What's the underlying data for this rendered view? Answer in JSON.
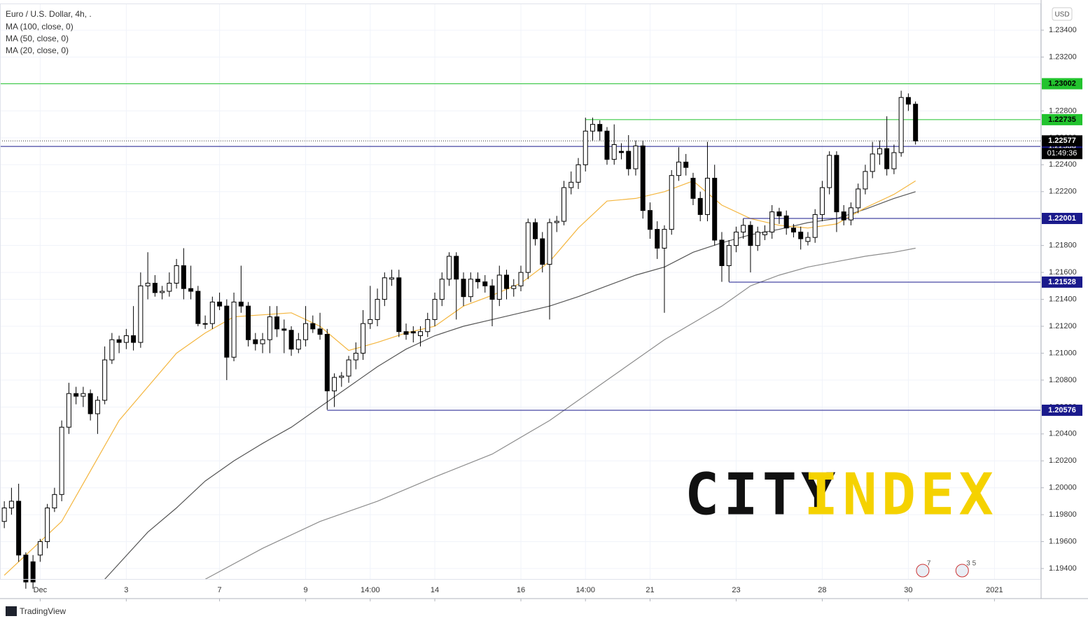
{
  "chart_data": {
    "type": "candlestick",
    "title": "Euro / U.S. Dollar, 4h, .",
    "currency": "USD",
    "xlim": [
      -0.6,
      144.5
    ],
    "ylim": [
      1.19317,
      1.23598
    ],
    "grid": true,
    "xticks": [
      {
        "value": 5,
        "label": "Dec"
      },
      {
        "value": 17,
        "label": "3"
      },
      {
        "value": 30,
        "label": "7"
      },
      {
        "value": 42,
        "label": "9"
      },
      {
        "value": 51,
        "label": "14:00"
      },
      {
        "value": 60,
        "label": "14"
      },
      {
        "value": 72,
        "label": "16"
      },
      {
        "value": 81,
        "label": "14:00"
      },
      {
        "value": 90,
        "label": "21"
      },
      {
        "value": 102,
        "label": "23"
      },
      {
        "value": 114,
        "label": "28"
      },
      {
        "value": 126,
        "label": "30"
      },
      {
        "value": 138,
        "label": "2021"
      }
    ],
    "yticks": [
      {
        "value": 1.194,
        "label": "1.19400"
      },
      {
        "value": 1.196,
        "label": "1.19600"
      },
      {
        "value": 1.198,
        "label": "1.19800"
      },
      {
        "value": 1.2,
        "label": "1.20000"
      },
      {
        "value": 1.202,
        "label": "1.20200"
      },
      {
        "value": 1.204,
        "label": "1.20400"
      },
      {
        "value": 1.206,
        "label": "1.20600"
      },
      {
        "value": 1.208,
        "label": "1.20800"
      },
      {
        "value": 1.21,
        "label": "1.21000"
      },
      {
        "value": 1.212,
        "label": "1.21200"
      },
      {
        "value": 1.214,
        "label": "1.21400"
      },
      {
        "value": 1.216,
        "label": "1.21600"
      },
      {
        "value": 1.218,
        "label": "1.21800"
      },
      {
        "value": 1.22,
        "label": "1.22000"
      },
      {
        "value": 1.222,
        "label": "1.22200"
      },
      {
        "value": 1.224,
        "label": "1.22400"
      },
      {
        "value": 1.226,
        "label": "1.22600"
      },
      {
        "value": 1.228,
        "label": "1.22800"
      },
      {
        "value": 1.23,
        "label": "1.23000"
      },
      {
        "value": 1.232,
        "label": "1.23200"
      },
      {
        "value": 1.234,
        "label": "1.23400"
      }
    ],
    "ohlc": [
      [
        1.1975,
        1.199,
        1.197,
        1.1985
      ],
      [
        1.1985,
        1.2,
        1.198,
        1.199
      ],
      [
        1.199,
        1.2003,
        1.1945,
        1.195
      ],
      [
        1.195,
        1.1952,
        1.1925,
        1.193
      ],
      [
        1.1945,
        1.195,
        1.1925,
        1.193
      ],
      [
        1.195,
        1.1962,
        1.1945,
        1.196
      ],
      [
        1.196,
        1.1988,
        1.1955,
        1.1985
      ],
      [
        1.1985,
        1.2,
        1.1982,
        1.1995
      ],
      [
        1.1995,
        1.205,
        1.199,
        1.2045
      ],
      [
        1.2045,
        1.2078,
        1.204,
        1.207
      ],
      [
        1.207,
        1.2075,
        1.2062,
        1.2068
      ],
      [
        1.2068,
        1.2075,
        1.206,
        1.207
      ],
      [
        1.207,
        1.2073,
        1.205,
        1.2055
      ],
      [
        1.2055,
        1.2068,
        1.204,
        1.2065
      ],
      [
        1.2065,
        1.2105,
        1.2062,
        1.2095
      ],
      [
        1.2095,
        1.2115,
        1.2092,
        1.211
      ],
      [
        1.211,
        1.2113,
        1.21,
        1.2108
      ],
      [
        1.2108,
        1.2118,
        1.2103,
        1.2113
      ],
      [
        1.2113,
        1.2135,
        1.2102,
        1.2108
      ],
      [
        1.2108,
        1.216,
        1.2104,
        1.215
      ],
      [
        1.215,
        1.2175,
        1.214,
        1.2152
      ],
      [
        1.2152,
        1.2158,
        1.2142,
        1.2145
      ],
      [
        1.2145,
        1.215,
        1.214,
        1.2146
      ],
      [
        1.2146,
        1.216,
        1.2142,
        1.2152
      ],
      [
        1.2152,
        1.217,
        1.2148,
        1.2165
      ],
      [
        1.2165,
        1.2178,
        1.214,
        1.2148
      ],
      [
        1.2148,
        1.2165,
        1.214,
        1.2146
      ],
      [
        1.2146,
        1.215,
        1.212,
        1.2122
      ],
      [
        1.2122,
        1.2128,
        1.2118,
        1.2122
      ],
      [
        1.2122,
        1.2142,
        1.2118,
        1.2138
      ],
      [
        1.2138,
        1.2145,
        1.2132,
        1.2135
      ],
      [
        1.2135,
        1.214,
        1.208,
        1.2097
      ],
      [
        1.2097,
        1.2145,
        1.2094,
        1.2138
      ],
      [
        1.2138,
        1.2165,
        1.213,
        1.2135
      ],
      [
        1.2135,
        1.2138,
        1.2105,
        1.211
      ],
      [
        1.211,
        1.2115,
        1.2102,
        1.2107
      ],
      [
        1.2107,
        1.2115,
        1.21,
        1.211
      ],
      [
        1.211,
        1.2135,
        1.21,
        1.2127
      ],
      [
        1.2127,
        1.2135,
        1.2112,
        1.2118
      ],
      [
        1.2118,
        1.2125,
        1.21,
        1.2117
      ],
      [
        1.2117,
        1.212,
        1.2098,
        1.2103
      ],
      [
        1.2103,
        1.2115,
        1.21,
        1.211
      ],
      [
        1.211,
        1.2135,
        1.2105,
        1.2122
      ],
      [
        1.2122,
        1.2128,
        1.2115,
        1.2118
      ],
      [
        1.2118,
        1.213,
        1.211,
        1.2114
      ],
      [
        1.2114,
        1.2118,
        1.2058,
        1.2072
      ],
      [
        1.2072,
        1.2085,
        1.206,
        1.2082
      ],
      [
        1.2082,
        1.2086,
        1.2075,
        1.2083
      ],
      [
        1.2083,
        1.2098,
        1.2078,
        1.2095
      ],
      [
        1.2095,
        1.2108,
        1.2088,
        1.21
      ],
      [
        1.21,
        1.2132,
        1.2095,
        1.2122
      ],
      [
        1.2122,
        1.215,
        1.2118,
        1.2125
      ],
      [
        1.2125,
        1.2148,
        1.212,
        1.214
      ],
      [
        1.214,
        1.216,
        1.2135,
        1.2156
      ],
      [
        1.2155,
        1.2162,
        1.215,
        1.2156
      ],
      [
        1.2156,
        1.2162,
        1.2112,
        1.2116
      ],
      [
        1.2116,
        1.2122,
        1.211,
        1.2114
      ],
      [
        1.2116,
        1.212,
        1.2108,
        1.2115
      ],
      [
        1.2113,
        1.212,
        1.2105,
        1.2116
      ],
      [
        1.2116,
        1.213,
        1.2112,
        1.2125
      ],
      [
        1.2125,
        1.2145,
        1.212,
        1.214
      ],
      [
        1.214,
        1.216,
        1.2135,
        1.2155
      ],
      [
        1.2155,
        1.2175,
        1.215,
        1.2172
      ],
      [
        1.2172,
        1.2175,
        1.2125,
        1.2155
      ],
      [
        1.2155,
        1.216,
        1.2135,
        1.2142
      ],
      [
        1.2142,
        1.216,
        1.2138,
        1.2155
      ],
      [
        1.2155,
        1.216,
        1.2148,
        1.2153
      ],
      [
        1.2153,
        1.2158,
        1.2145,
        1.215
      ],
      [
        1.215,
        1.2155,
        1.212,
        1.214
      ],
      [
        1.214,
        1.2165,
        1.2135,
        1.2158
      ],
      [
        1.2158,
        1.2162,
        1.214,
        1.2148
      ],
      [
        1.2148,
        1.2155,
        1.2142,
        1.215
      ],
      [
        1.215,
        1.2165,
        1.2146,
        1.216
      ],
      [
        1.216,
        1.22,
        1.2155,
        1.2197
      ],
      [
        1.2197,
        1.22,
        1.218,
        1.2185
      ],
      [
        1.2185,
        1.219,
        1.216,
        1.2166
      ],
      [
        1.2166,
        1.22,
        1.2125,
        1.2197
      ],
      [
        1.2197,
        1.2202,
        1.219,
        1.2198
      ],
      [
        1.2198,
        1.2228,
        1.2195,
        1.2223
      ],
      [
        1.2223,
        1.2235,
        1.2218,
        1.2227
      ],
      [
        1.2227,
        1.2245,
        1.2222,
        1.224
      ],
      [
        1.224,
        1.2275,
        1.2235,
        1.2265
      ],
      [
        1.2265,
        1.2275,
        1.2258,
        1.227
      ],
      [
        1.227,
        1.2273,
        1.2258,
        1.2265
      ],
      [
        1.2265,
        1.2268,
        1.224,
        1.2244
      ],
      [
        1.2244,
        1.227,
        1.224,
        1.2255
      ],
      [
        1.225,
        1.2256,
        1.2244,
        1.2249
      ],
      [
        1.225,
        1.2262,
        1.2232,
        1.2237
      ],
      [
        1.2237,
        1.2258,
        1.2232,
        1.2254
      ],
      [
        1.2254,
        1.2258,
        1.22,
        1.2206
      ],
      [
        1.2206,
        1.2212,
        1.2185,
        1.2192
      ],
      [
        1.2192,
        1.2198,
        1.217,
        1.2178
      ],
      [
        1.2178,
        1.2195,
        1.213,
        1.2192
      ],
      [
        1.2192,
        1.2236,
        1.2188,
        1.2232
      ],
      [
        1.2232,
        1.2253,
        1.2228,
        1.2242
      ],
      [
        1.2242,
        1.2248,
        1.2232,
        1.2238
      ],
      [
        1.223,
        1.2234,
        1.221,
        1.2215
      ],
      [
        1.2215,
        1.222,
        1.2198,
        1.2203
      ],
      [
        1.2203,
        1.2257,
        1.2198,
        1.223
      ],
      [
        1.223,
        1.224,
        1.218,
        1.2184
      ],
      [
        1.2184,
        1.219,
        1.2153,
        1.2165
      ],
      [
        1.2165,
        1.2184,
        1.2153,
        1.218
      ],
      [
        1.218,
        1.2194,
        1.2175,
        1.219
      ],
      [
        1.219,
        1.22,
        1.2185,
        1.2195
      ],
      [
        1.2195,
        1.2198,
        1.216,
        1.218
      ],
      [
        1.218,
        1.2194,
        1.2176,
        1.219
      ],
      [
        1.2188,
        1.2195,
        1.2184,
        1.219
      ],
      [
        1.219,
        1.221,
        1.2185,
        1.2205
      ],
      [
        1.2205,
        1.2208,
        1.2196,
        1.2202
      ],
      [
        1.2202,
        1.2206,
        1.2188,
        1.2193
      ],
      [
        1.2193,
        1.2196,
        1.2186,
        1.219
      ],
      [
        1.219,
        1.2194,
        1.2177,
        1.2185
      ],
      [
        1.2183,
        1.219,
        1.218,
        1.2186
      ],
      [
        1.2186,
        1.2207,
        1.2182,
        1.2203
      ],
      [
        1.2203,
        1.2228,
        1.2198,
        1.2223
      ],
      [
        1.2223,
        1.225,
        1.2218,
        1.2247
      ],
      [
        1.2247,
        1.225,
        1.219,
        1.2205
      ],
      [
        1.2205,
        1.221,
        1.2195,
        1.2199
      ],
      [
        1.2199,
        1.2212,
        1.2195,
        1.2208
      ],
      [
        1.2208,
        1.2226,
        1.2204,
        1.2222
      ],
      [
        1.2222,
        1.224,
        1.2218,
        1.2235
      ],
      [
        1.2235,
        1.2257,
        1.223,
        1.2248
      ],
      [
        1.2248,
        1.2258,
        1.224,
        1.2252
      ],
      [
        1.2252,
        1.2276,
        1.2232,
        1.2237
      ],
      [
        1.2237,
        1.2255,
        1.2233,
        1.2249
      ],
      [
        1.2249,
        1.2295,
        1.2246,
        1.229
      ],
      [
        1.229,
        1.2293,
        1.228,
        1.2285
      ],
      [
        1.2285,
        1.2287,
        1.2255,
        1.22577
      ]
    ],
    "series": [
      {
        "name": "MA (100, close, 0)",
        "color": "#8c8c8c",
        "x": [
          28,
          36,
          44,
          52,
          60,
          68,
          76,
          84,
          92,
          100,
          104,
          108,
          112,
          116,
          120,
          124,
          127
        ],
        "values": [
          1.1932,
          1.1955,
          1.1975,
          1.199,
          1.2008,
          1.2025,
          1.205,
          1.208,
          1.211,
          1.2135,
          1.215,
          1.2158,
          1.2164,
          1.2168,
          1.2172,
          1.2175,
          1.2178
        ]
      },
      {
        "name": "MA (50, close, 0)",
        "color": "#555555",
        "x": [
          14,
          20,
          24,
          28,
          32,
          36,
          40,
          44,
          48,
          52,
          56,
          60,
          64,
          68,
          72,
          76,
          80,
          84,
          88,
          92,
          96,
          100,
          104,
          108,
          112,
          116,
          120,
          124,
          127
        ],
        "values": [
          1.1932,
          1.1967,
          1.1985,
          1.2005,
          1.202,
          1.2033,
          1.2045,
          1.206,
          1.2075,
          1.209,
          1.2103,
          1.2113,
          1.212,
          1.2125,
          1.213,
          1.2135,
          1.2142,
          1.215,
          1.2158,
          1.2164,
          1.2175,
          1.2182,
          1.2188,
          1.2192,
          1.2197,
          1.22,
          1.2207,
          1.2215,
          1.222
        ]
      },
      {
        "name": "MA (20, close, 0)",
        "color": "#f4b63f",
        "x": [
          0,
          8,
          16,
          24,
          28,
          32,
          40,
          44,
          48,
          52,
          56,
          60,
          64,
          68,
          72,
          76,
          80,
          84,
          88,
          92,
          96,
          100,
          104,
          108,
          112,
          116,
          120,
          124,
          127
        ],
        "values": [
          1.1935,
          1.1975,
          1.205,
          1.21,
          1.2115,
          1.2127,
          1.213,
          1.212,
          1.2102,
          1.2108,
          1.2115,
          1.212,
          1.2135,
          1.2143,
          1.2152,
          1.2168,
          1.2193,
          1.2213,
          1.2215,
          1.222,
          1.2228,
          1.221,
          1.22,
          1.2195,
          1.2193,
          1.2196,
          1.2208,
          1.2218,
          1.2228
        ]
      }
    ],
    "levels": [
      {
        "price": 1.23002,
        "color": "#22c32e"
      },
      {
        "price": 1.22735,
        "color": "#22c32e",
        "from_x": 81
      },
      {
        "price": 1.22536,
        "color": "#1a1a8c"
      },
      {
        "price": 1.22001,
        "color": "#1a1a8c",
        "from_x": 103
      },
      {
        "price": 1.21528,
        "color": "#1a1a8c",
        "from_x": 101
      },
      {
        "price": 1.20576,
        "color": "#1a1a8c",
        "from_x": 45
      }
    ],
    "last_price": 1.22577,
    "countdown": "01:49:36",
    "events": [
      {
        "x": 128,
        "label": "7"
      },
      {
        "x": 133.5,
        "label": "3 5"
      }
    ]
  },
  "watermark": {
    "left": "CITY",
    "right": "INDEX"
  },
  "footer": "TradingView"
}
